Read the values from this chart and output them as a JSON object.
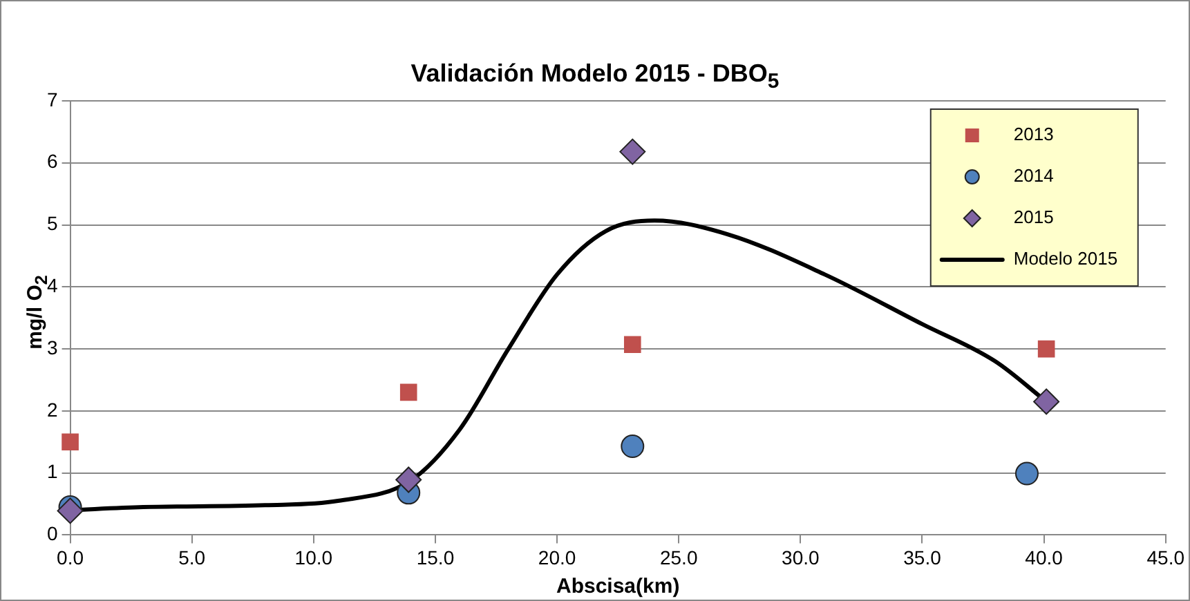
{
  "chart_data": {
    "type": "scatter",
    "title": "Validación Modelo 2015 - DBO$_{5}$",
    "xlabel": "Abscisa(km)",
    "ylabel": "mg/l O$_{2}$",
    "xlim": [
      0,
      45
    ],
    "xticks": [
      {
        "value": 0,
        "label": "0.0"
      },
      {
        "value": 5,
        "label": "5.0"
      },
      {
        "value": 10,
        "label": "10.0"
      },
      {
        "value": 15,
        "label": "15.0"
      },
      {
        "value": 20,
        "label": "20.0"
      },
      {
        "value": 25,
        "label": "25.0"
      },
      {
        "value": 30,
        "label": "30.0"
      },
      {
        "value": 35,
        "label": "35.0"
      },
      {
        "value": 40,
        "label": "40.0"
      },
      {
        "value": 45,
        "label": "45.0"
      }
    ],
    "ylim": [
      0,
      7
    ],
    "yticks": [
      0,
      1,
      2,
      3,
      4,
      5,
      6,
      7
    ],
    "grid": "y",
    "legend": "top right",
    "series": [
      {
        "name": "2013",
        "color": "#c0504d",
        "marker": "square",
        "x": [
          0,
          13.9,
          23.1,
          40.1
        ],
        "values": [
          1.5,
          2.3,
          3.07,
          3.0
        ]
      },
      {
        "name": "2014",
        "color": "#4f81bd",
        "marker": "circle",
        "x": [
          0,
          13.9,
          23.1,
          39.3
        ],
        "values": [
          0.45,
          0.68,
          1.43,
          0.99
        ]
      },
      {
        "name": "2015",
        "color": "#8064a2",
        "marker": "diamond",
        "x": [
          0,
          13.9,
          23.1,
          40.1
        ],
        "values": [
          0.39,
          0.89,
          6.18,
          2.15
        ]
      },
      {
        "name": "Modelo 2015",
        "color": "#000000",
        "type": "line",
        "marker": "none",
        "x": [
          0,
          3,
          8,
          11,
          14,
          16,
          18,
          20,
          22,
          24,
          27,
          31,
          35,
          38,
          40.1
        ],
        "values": [
          0.4,
          0.45,
          0.48,
          0.55,
          0.88,
          1.7,
          3.0,
          4.2,
          4.9,
          5.07,
          4.85,
          4.2,
          3.4,
          2.8,
          2.15
        ]
      }
    ]
  }
}
